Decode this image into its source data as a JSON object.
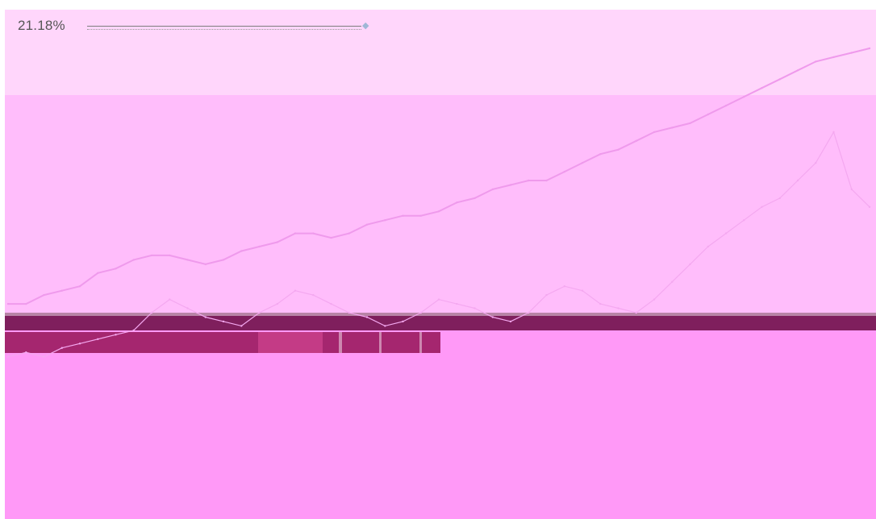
{
  "readout": {
    "value": "21.18%"
  },
  "colors": {
    "background": "#ffffff",
    "band_top": "#ffd6fb",
    "band_middle": "#ffbdfb",
    "band_bottom": "#ff99f7",
    "primary_line": "#ef9aec",
    "secondary_line": "#f4a8f0",
    "legend_dark": "#7f1f5d"
  },
  "icons": {
    "slider_handle": "slider-handle-icon"
  },
  "chart_data": {
    "type": "line",
    "grid": false,
    "legend": "middle",
    "series": [
      {
        "values": [
          42,
          42,
          44,
          45,
          46,
          49,
          50,
          52,
          53,
          53,
          52,
          51,
          52,
          54,
          55,
          56,
          58,
          58,
          57,
          58,
          60,
          61,
          62,
          62,
          63,
          65,
          66,
          68,
          69,
          70,
          70,
          72,
          74,
          76,
          77,
          79,
          81,
          82,
          83,
          85,
          87,
          89,
          91,
          93,
          95,
          97,
          98,
          99,
          100
        ]
      },
      {
        "values": [
          30,
          31,
          30,
          32,
          33,
          34,
          35,
          36,
          40,
          43,
          41,
          39,
          38,
          37,
          40,
          42,
          45,
          44,
          42,
          40,
          39,
          37,
          38,
          40,
          43,
          42,
          41,
          39,
          38,
          40,
          44,
          46,
          45,
          42,
          41,
          40,
          43,
          47,
          51,
          55,
          58,
          61,
          64,
          66,
          70,
          74,
          81,
          68,
          64
        ]
      }
    ]
  }
}
